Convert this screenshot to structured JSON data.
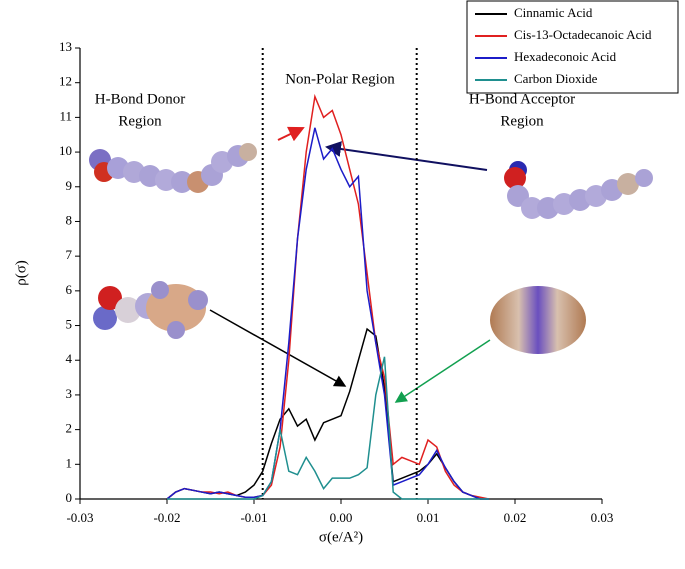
{
  "chart_data": {
    "type": "line",
    "x_label": "σ(e/A²)",
    "y_label": "ρ(σ)",
    "x": [
      -0.02,
      -0.019,
      -0.018,
      -0.017,
      -0.016,
      -0.015,
      -0.014,
      -0.013,
      -0.012,
      -0.011,
      -0.01,
      -0.009,
      -0.008,
      -0.007,
      -0.006,
      -0.005,
      -0.004,
      -0.003,
      -0.002,
      -0.001,
      0,
      0.001,
      0.002,
      0.003,
      0.004,
      0.005,
      0.006,
      0.007,
      0.008,
      0.009,
      0.01,
      0.011,
      0.012,
      0.013,
      0.014,
      0.015,
      0.016,
      0.017
    ],
    "series": [
      {
        "name": "Cinnamic Acid",
        "color": "#000000",
        "values": [
          0,
          0.2,
          0.3,
          0.25,
          0.2,
          0.15,
          0.2,
          0.15,
          0.1,
          0.2,
          0.4,
          0.8,
          1.6,
          2.3,
          2.6,
          2.1,
          2.3,
          1.7,
          2.2,
          2.3,
          2.4,
          3.1,
          4.0,
          4.9,
          4.7,
          3.2,
          0.5,
          0.6,
          0.7,
          0.8,
          1.0,
          1.3,
          0.9,
          0.5,
          0.2,
          0.1,
          0,
          0
        ]
      },
      {
        "name": "Cis-13-Octadecanoic Acid",
        "color": "#e02020",
        "values": [
          0,
          0.2,
          0.3,
          0.25,
          0.2,
          0.2,
          0.15,
          0.2,
          0.1,
          0.05,
          0.05,
          0.1,
          0.4,
          1.5,
          4.0,
          7.5,
          10.0,
          11.6,
          11.0,
          11.2,
          10.5,
          9.5,
          8.5,
          6.5,
          4.5,
          3.5,
          1.0,
          1.2,
          1.1,
          1.0,
          1.7,
          1.5,
          0.8,
          0.4,
          0.2,
          0.1,
          0.05,
          0
        ]
      },
      {
        "name": "Hexadeconoic Acid",
        "color": "#1c1cc8",
        "values": [
          0,
          0.2,
          0.3,
          0.25,
          0.2,
          0.15,
          0.2,
          0.15,
          0.1,
          0.05,
          0.05,
          0.1,
          0.5,
          2.0,
          4.5,
          7.5,
          9.5,
          10.7,
          9.8,
          10.1,
          9.5,
          9.0,
          9.3,
          6.0,
          4.5,
          3.0,
          0.4,
          0.5,
          0.6,
          0.7,
          1.0,
          1.4,
          0.9,
          0.5,
          0.2,
          0.1,
          0,
          0
        ]
      },
      {
        "name": "Carbon Dioxide",
        "color": "#1f8f8f",
        "values": [
          0,
          0,
          0,
          0,
          0,
          0,
          0,
          0,
          0,
          0,
          0,
          0.1,
          0.5,
          2.0,
          0.8,
          0.7,
          1.2,
          0.8,
          0.3,
          0.6,
          0.6,
          0.6,
          0.7,
          0.9,
          3.0,
          4.1,
          0.2,
          0,
          0,
          0,
          0,
          0,
          0,
          0,
          0,
          0,
          0,
          0
        ]
      }
    ],
    "xlim": [
      -0.03,
      0.03
    ],
    "xticks": [
      -0.03,
      -0.02,
      -0.01,
      {
        "value": 0,
        "label": "0.00"
      },
      0.01,
      0.02,
      0.03
    ],
    "ylim": [
      0,
      13
    ],
    "yticks": [
      0,
      1,
      2,
      3,
      4,
      5,
      6,
      7,
      8,
      9,
      10,
      11,
      12,
      13
    ],
    "region_lines": [
      -0.009,
      0.0087
    ],
    "annotations": [
      {
        "lines": [
          "H-Bond Donor",
          "Region"
        ]
      },
      {
        "lines": [
          "Non-Polar Region"
        ]
      },
      {
        "lines": [
          "H-Bond Acceptor",
          "Region"
        ]
      }
    ],
    "legend": "top-right"
  }
}
